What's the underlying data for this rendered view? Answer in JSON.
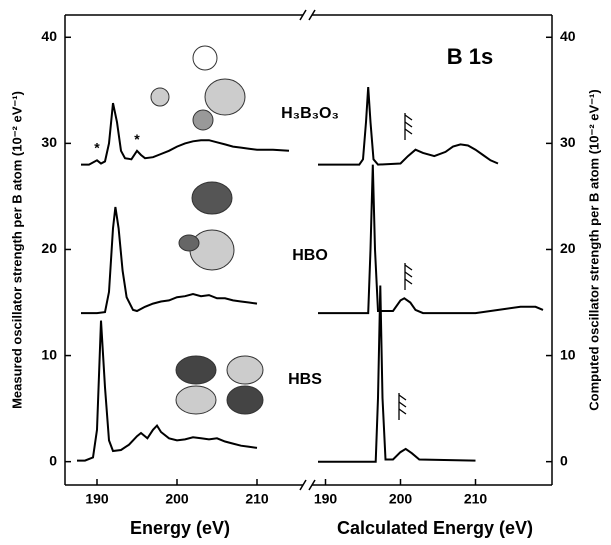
{
  "chart_data": [
    {
      "type": "line",
      "y_label": "Measured oscillator strength per B atom (10⁻² eV⁻¹)",
      "x_label": "Energy (eV)",
      "xlim": [
        186,
        215
      ],
      "xticks": [
        190,
        200,
        210
      ],
      "ylim": [
        -2.2,
        42.1
      ],
      "yticks": [
        0,
        10,
        20,
        30,
        40
      ],
      "annotations": [
        "*",
        "*"
      ],
      "annotation_x": [
        190,
        195
      ],
      "annotation_y": [
        29.5,
        30.3
      ],
      "series": [
        {
          "color": "#000000",
          "x": [
            188,
            189,
            190,
            190.5,
            191,
            191.5,
            192,
            192.5,
            193,
            193.5,
            194.3,
            195,
            195.5,
            196,
            197,
            198,
            199,
            200,
            201,
            202,
            203,
            204,
            205,
            206,
            207,
            208,
            209,
            210,
            212,
            214
          ],
          "values": [
            28.0,
            28.0,
            28.4,
            28.1,
            28.3,
            30,
            33.8,
            32,
            29.3,
            28.6,
            28.5,
            29.3,
            28.9,
            28.6,
            28.7,
            29.0,
            29.3,
            29.7,
            30.0,
            30.2,
            30.3,
            30.3,
            30.1,
            29.9,
            29.7,
            29.6,
            29.5,
            29.4,
            29.4,
            29.3
          ]
        },
        {
          "color": "#000000",
          "x": [
            188,
            190,
            191,
            191.5,
            192,
            192.3,
            192.7,
            193.2,
            193.7,
            194.5,
            195,
            196,
            197,
            198,
            199,
            200,
            201,
            202,
            203,
            204,
            205,
            206,
            207,
            208,
            209,
            210
          ],
          "values": [
            14,
            14,
            14.1,
            16,
            22,
            24,
            22,
            18,
            15.5,
            14.3,
            14.2,
            14.6,
            14.9,
            15.1,
            15.2,
            15.5,
            15.6,
            15.8,
            15.6,
            15.7,
            15.4,
            15.4,
            15.2,
            15.1,
            15.0,
            14.9
          ]
        },
        {
          "color": "#000000",
          "x": [
            187.5,
            188.5,
            189.5,
            190,
            190.5,
            191,
            191.5,
            192,
            193,
            194,
            195,
            195.5,
            196.3,
            197,
            197.5,
            198,
            199,
            200,
            201,
            202,
            203,
            204,
            205,
            206,
            207,
            208,
            209,
            210
          ],
          "values": [
            0.1,
            0.1,
            0.4,
            3,
            13.3,
            7,
            2,
            1.0,
            1.1,
            1.6,
            2.4,
            2.7,
            2.2,
            3.0,
            3.4,
            2.8,
            2.2,
            2.0,
            2.1,
            2.3,
            2.2,
            2.1,
            2.2,
            1.9,
            1.7,
            1.5,
            1.4,
            1.3
          ]
        }
      ]
    },
    {
      "type": "line",
      "y_label": "Computed oscillator strength per B atom (10⁻² eV⁻¹)",
      "x_label": "Calculated Energy (eV)",
      "xlim": [
        189,
        220.2
      ],
      "xticks": [
        190,
        200,
        210
      ],
      "ylim": [
        -2.2,
        42.1
      ],
      "yticks": [
        0,
        10,
        20,
        30,
        40
      ],
      "title": "B 1s",
      "molecules": [
        "H₃B₃O₃",
        "HBO",
        "HBS"
      ],
      "series": [
        {
          "color": "#000000",
          "x": [
            189,
            194.5,
            195,
            195.4,
            195.7,
            196,
            196.4,
            197,
            200,
            201,
            202,
            203,
            204.5,
            206,
            207,
            208,
            209,
            210,
            211,
            212,
            213
          ],
          "values": [
            28,
            28,
            28.5,
            32,
            35.3,
            32,
            28.5,
            28,
            28.1,
            28.8,
            29.4,
            29.1,
            28.8,
            29.2,
            29.7,
            29.9,
            29.8,
            29.4,
            28.9,
            28.4,
            28.1
          ]
        },
        {
          "color": "#000000",
          "x": [
            189,
            195.7,
            196,
            196.3,
            196.6,
            197,
            199,
            200,
            200.5,
            201.3,
            202,
            203,
            210,
            214,
            216,
            218,
            219
          ],
          "values": [
            14,
            14,
            20,
            28,
            20,
            14.2,
            14.2,
            15.2,
            15.4,
            15,
            14.3,
            14,
            14,
            14.4,
            14.6,
            14.6,
            14.3
          ]
        },
        {
          "color": "#000000",
          "x": [
            189,
            196.7,
            197,
            197.3,
            197.6,
            198,
            199,
            200,
            200.7,
            201.5,
            202.5,
            210
          ],
          "values": [
            0,
            0,
            6,
            16.6,
            6,
            0.2,
            0.2,
            0.9,
            1.2,
            0.8,
            0.2,
            0.1
          ]
        }
      ]
    }
  ]
}
